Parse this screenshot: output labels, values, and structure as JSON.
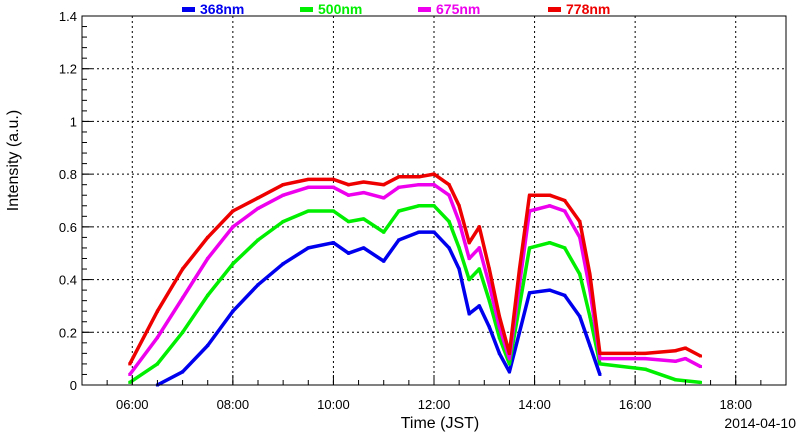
{
  "chart_data": {
    "type": "scatter",
    "xlabel": "Time (JST)",
    "ylabel": "Intensity (a.u.)",
    "date_label": "2014-04-10",
    "xlim": [
      5.0,
      19.0
    ],
    "ylim": [
      0,
      1.4
    ],
    "x_ticks": [
      {
        "value": 6,
        "label": "06:00"
      },
      {
        "value": 8,
        "label": "08:00"
      },
      {
        "value": 10,
        "label": "10:00"
      },
      {
        "value": 12,
        "label": "12:00"
      },
      {
        "value": 14,
        "label": "14:00"
      },
      {
        "value": 16,
        "label": "16:00"
      },
      {
        "value": 18,
        "label": "18:00"
      }
    ],
    "y_ticks": [
      {
        "value": 0,
        "label": "0"
      },
      {
        "value": 0.2,
        "label": "0.2"
      },
      {
        "value": 0.4,
        "label": "0.4"
      },
      {
        "value": 0.6,
        "label": "0.6"
      },
      {
        "value": 0.8,
        "label": "0.8"
      },
      {
        "value": 1.0,
        "label": "1"
      },
      {
        "value": 1.2,
        "label": "1.2"
      },
      {
        "value": 1.4,
        "label": "1.4"
      }
    ],
    "grid": true,
    "legend_position": "top",
    "series": [
      {
        "name": "368nm",
        "color": "#0000ee",
        "points": [
          [
            6.5,
            0.0
          ],
          [
            7.0,
            0.05
          ],
          [
            7.5,
            0.15
          ],
          [
            8.0,
            0.28
          ],
          [
            8.5,
            0.38
          ],
          [
            9.0,
            0.46
          ],
          [
            9.5,
            0.52
          ],
          [
            10.0,
            0.54
          ],
          [
            10.3,
            0.5
          ],
          [
            10.6,
            0.52
          ],
          [
            11.0,
            0.47
          ],
          [
            11.3,
            0.55
          ],
          [
            11.7,
            0.58
          ],
          [
            12.0,
            0.58
          ],
          [
            12.3,
            0.52
          ],
          [
            12.5,
            0.44
          ],
          [
            12.7,
            0.27
          ],
          [
            12.9,
            0.3
          ],
          [
            13.1,
            0.22
          ],
          [
            13.3,
            0.12
          ],
          [
            13.5,
            0.05
          ],
          [
            13.7,
            0.2
          ],
          [
            13.9,
            0.35
          ],
          [
            14.3,
            0.36
          ],
          [
            14.6,
            0.34
          ],
          [
            14.9,
            0.26
          ],
          [
            15.1,
            0.15
          ],
          [
            15.3,
            0.04
          ]
        ]
      },
      {
        "name": "500nm",
        "color": "#00ee00",
        "points": [
          [
            5.95,
            0.01
          ],
          [
            6.5,
            0.08
          ],
          [
            7.0,
            0.2
          ],
          [
            7.5,
            0.34
          ],
          [
            8.0,
            0.46
          ],
          [
            8.5,
            0.55
          ],
          [
            9.0,
            0.62
          ],
          [
            9.5,
            0.66
          ],
          [
            10.0,
            0.66
          ],
          [
            10.3,
            0.62
          ],
          [
            10.6,
            0.63
          ],
          [
            11.0,
            0.58
          ],
          [
            11.3,
            0.66
          ],
          [
            11.7,
            0.68
          ],
          [
            12.0,
            0.68
          ],
          [
            12.3,
            0.62
          ],
          [
            12.5,
            0.52
          ],
          [
            12.7,
            0.4
          ],
          [
            12.9,
            0.44
          ],
          [
            13.1,
            0.32
          ],
          [
            13.3,
            0.18
          ],
          [
            13.5,
            0.08
          ],
          [
            13.7,
            0.3
          ],
          [
            13.9,
            0.52
          ],
          [
            14.3,
            0.54
          ],
          [
            14.6,
            0.52
          ],
          [
            14.9,
            0.42
          ],
          [
            15.1,
            0.26
          ],
          [
            15.3,
            0.08
          ],
          [
            16.2,
            0.06
          ],
          [
            16.8,
            0.02
          ],
          [
            17.3,
            0.01
          ]
        ]
      },
      {
        "name": "675nm",
        "color": "#ee00ee",
        "points": [
          [
            5.95,
            0.04
          ],
          [
            6.5,
            0.18
          ],
          [
            7.0,
            0.33
          ],
          [
            7.5,
            0.48
          ],
          [
            8.0,
            0.6
          ],
          [
            8.5,
            0.67
          ],
          [
            9.0,
            0.72
          ],
          [
            9.5,
            0.75
          ],
          [
            10.0,
            0.75
          ],
          [
            10.3,
            0.72
          ],
          [
            10.6,
            0.73
          ],
          [
            11.0,
            0.71
          ],
          [
            11.3,
            0.75
          ],
          [
            11.7,
            0.76
          ],
          [
            12.0,
            0.76
          ],
          [
            12.3,
            0.72
          ],
          [
            12.5,
            0.62
          ],
          [
            12.7,
            0.48
          ],
          [
            12.9,
            0.52
          ],
          [
            13.1,
            0.38
          ],
          [
            13.3,
            0.22
          ],
          [
            13.5,
            0.1
          ],
          [
            13.7,
            0.38
          ],
          [
            13.9,
            0.66
          ],
          [
            14.3,
            0.68
          ],
          [
            14.6,
            0.66
          ],
          [
            14.9,
            0.56
          ],
          [
            15.1,
            0.36
          ],
          [
            15.3,
            0.1
          ],
          [
            16.2,
            0.1
          ],
          [
            16.8,
            0.09
          ],
          [
            17.0,
            0.1
          ],
          [
            17.3,
            0.07
          ]
        ]
      },
      {
        "name": "778nm",
        "color": "#ee0000",
        "points": [
          [
            5.95,
            0.08
          ],
          [
            6.5,
            0.28
          ],
          [
            7.0,
            0.44
          ],
          [
            7.5,
            0.56
          ],
          [
            8.0,
            0.66
          ],
          [
            8.5,
            0.71
          ],
          [
            9.0,
            0.76
          ],
          [
            9.5,
            0.78
          ],
          [
            10.0,
            0.78
          ],
          [
            10.3,
            0.76
          ],
          [
            10.6,
            0.77
          ],
          [
            11.0,
            0.76
          ],
          [
            11.3,
            0.79
          ],
          [
            11.7,
            0.79
          ],
          [
            12.0,
            0.8
          ],
          [
            12.3,
            0.76
          ],
          [
            12.5,
            0.68
          ],
          [
            12.7,
            0.54
          ],
          [
            12.9,
            0.6
          ],
          [
            13.1,
            0.44
          ],
          [
            13.3,
            0.26
          ],
          [
            13.5,
            0.12
          ],
          [
            13.7,
            0.44
          ],
          [
            13.9,
            0.72
          ],
          [
            14.3,
            0.72
          ],
          [
            14.6,
            0.7
          ],
          [
            14.9,
            0.62
          ],
          [
            15.1,
            0.42
          ],
          [
            15.3,
            0.12
          ],
          [
            16.2,
            0.12
          ],
          [
            16.8,
            0.13
          ],
          [
            17.0,
            0.14
          ],
          [
            17.3,
            0.11
          ]
        ]
      }
    ]
  }
}
